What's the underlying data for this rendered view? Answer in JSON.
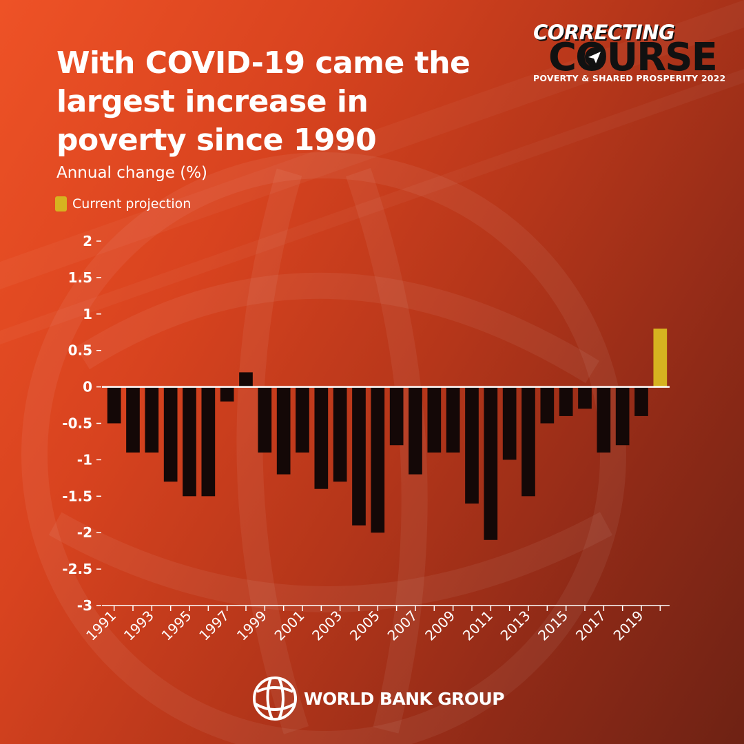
{
  "header": {
    "title": "With COVID-19 came the largest increase in poverty since 1990",
    "subtitle": "Annual change (%)"
  },
  "legend": {
    "label": "Current projection",
    "color": "#d6b320"
  },
  "brand": {
    "line1": "CORRECTING",
    "line2": "COURSE",
    "line3": "POVERTY & SHARED PROSPERITY 2022"
  },
  "footer": {
    "logo_text": "WORLD BANK GROUP",
    "logo_icon": "globe-icon"
  },
  "colors": {
    "bar": "#140807",
    "projection": "#d6b320",
    "axis": "#ffffff",
    "text": "#ffffff"
  },
  "chart_data": {
    "type": "bar",
    "title": "With COVID-19 came the largest increase in poverty since 1990",
    "ylabel": "Annual change (%)",
    "xlabel": "",
    "ylim": [
      -3,
      2
    ],
    "yticks": [
      2,
      1.5,
      1,
      0.5,
      0,
      -0.5,
      -1,
      -1.5,
      -2,
      -2.5,
      -3
    ],
    "categories": [
      "1991",
      "1992",
      "1993",
      "1994",
      "1995",
      "1996",
      "1997",
      "1998",
      "1999",
      "2000",
      "2001",
      "2002",
      "2003",
      "2004",
      "2005",
      "2006",
      "2007",
      "2008",
      "2009",
      "2010",
      "2011",
      "2012",
      "2013",
      "2014",
      "2015",
      "2016",
      "2017",
      "2018",
      "2019",
      "2020"
    ],
    "x_tick_labels": [
      "1991",
      "1993",
      "1995",
      "1997",
      "1999",
      "2001",
      "2003",
      "2005",
      "2007",
      "2009",
      "2011",
      "2013",
      "2015",
      "2017",
      "2019"
    ],
    "values": [
      -0.5,
      -0.9,
      -0.9,
      -1.3,
      -1.5,
      -1.5,
      -0.2,
      0.2,
      -0.9,
      -1.2,
      -0.9,
      -1.4,
      -1.3,
      -1.9,
      -2.0,
      -0.8,
      -1.2,
      -0.9,
      -0.9,
      -1.6,
      -2.1,
      -1.0,
      -1.5,
      -0.5,
      -0.4,
      -0.3,
      -0.9,
      -0.8,
      -0.4,
      0.8
    ],
    "highlight": {
      "category": "2020",
      "label": "Current projection"
    },
    "grid": false,
    "legend_position": "top-left"
  }
}
